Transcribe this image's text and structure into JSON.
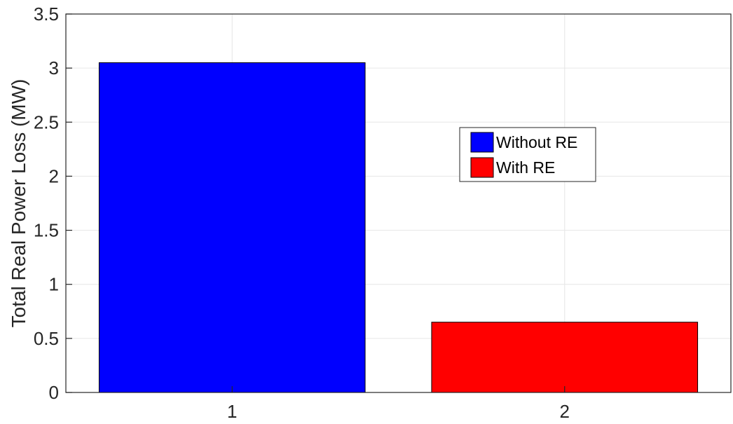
{
  "chart_data": {
    "type": "bar",
    "categories": [
      "1",
      "2"
    ],
    "series": [
      {
        "name": "Without RE",
        "values": [
          3.05,
          0
        ],
        "color": "#0000ff"
      },
      {
        "name": "With RE",
        "values": [
          0,
          0.65
        ],
        "color": "#ff0000"
      }
    ],
    "title": "",
    "xlabel": "",
    "ylabel": "Total Real Power Loss (MW)",
    "ylim": [
      0,
      3.5
    ],
    "yticks": [
      "0",
      "0.5",
      "1",
      "1.5",
      "2",
      "2.5",
      "3",
      "3.5"
    ],
    "grid": true,
    "legend_position": "inside-right"
  }
}
